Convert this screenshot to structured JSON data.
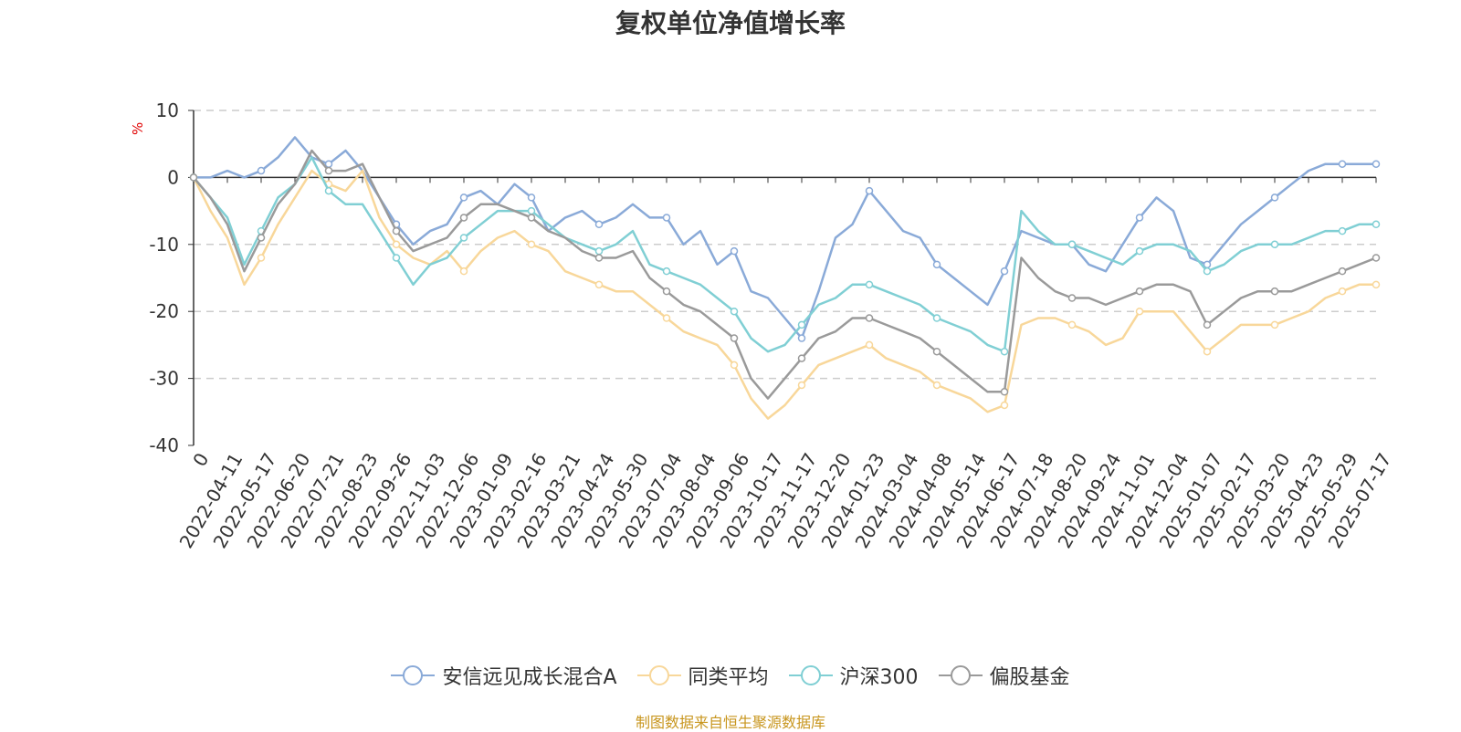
{
  "page_title": "复权单位净值增长率",
  "source_note": "制图数据来自恒生聚源数据库",
  "chart_data": {
    "type": "line",
    "title": "复权单位净值增长率",
    "ylabel": "%",
    "xlabel": "",
    "ylim": [
      -40,
      10
    ],
    "yticks": [
      10,
      0,
      -10,
      -20,
      -30,
      -40
    ],
    "grid": true,
    "legend_position": "bottom",
    "x_tick_labels": [
      "0",
      "2022-04-11",
      "2022-05-17",
      "2022-06-20",
      "2022-07-21",
      "2022-08-23",
      "2022-09-26",
      "2022-11-03",
      "2022-12-06",
      "2023-01-09",
      "2023-02-16",
      "2023-03-21",
      "2023-04-24",
      "2023-05-30",
      "2023-07-04",
      "2023-08-04",
      "2023-09-06",
      "2023-10-17",
      "2023-11-17",
      "2023-12-20",
      "2024-01-23",
      "2024-03-04",
      "2024-04-08",
      "2024-05-14",
      "2024-06-17",
      "2024-07-18",
      "2024-08-20",
      "2024-09-24",
      "2024-11-01",
      "2024-12-04",
      "2025-01-07",
      "2025-02-17",
      "2025-03-20",
      "2025-04-23",
      "2025-05-29",
      "2025-07-17"
    ],
    "x": [
      0,
      0.5,
      1,
      1.5,
      2,
      2.5,
      3,
      3.5,
      4,
      4.5,
      5,
      5.5,
      6,
      6.5,
      7,
      7.5,
      8,
      8.5,
      9,
      9.5,
      10,
      10.5,
      11,
      11.5,
      12,
      12.5,
      13,
      13.5,
      14,
      14.5,
      15,
      15.5,
      16,
      16.5,
      17,
      17.5,
      18,
      18.5,
      19,
      19.5,
      20,
      20.5,
      21,
      21.5,
      22,
      22.5,
      23,
      23.5,
      24,
      24.5,
      25,
      25.5,
      26,
      26.5,
      27,
      27.5,
      28,
      28.5,
      29,
      29.5,
      30,
      30.5,
      31,
      31.5,
      32,
      32.5,
      33,
      33.5,
      34,
      34.5,
      35
    ],
    "series": [
      {
        "name": "安信远见成长混合A",
        "color": "#8aaad8",
        "values": [
          0,
          0,
          1,
          0,
          1,
          3,
          6,
          3,
          2,
          4,
          1,
          -3,
          -7,
          -10,
          -8,
          -7,
          -3,
          -2,
          -4,
          -1,
          -3,
          -8,
          -6,
          -5,
          -7,
          -6,
          -4,
          -6,
          -6,
          -10,
          -8,
          -13,
          -11,
          -17,
          -18,
          -21,
          -24,
          -17,
          -9,
          -7,
          -2,
          -5,
          -8,
          -9,
          -13,
          -15,
          -17,
          -19,
          -14,
          -8,
          -9,
          -10,
          -10,
          -13,
          -14,
          -10,
          -6,
          -3,
          -5,
          -12,
          -13,
          -10,
          -7,
          -5,
          -3,
          -1,
          1,
          2,
          2,
          2,
          2
        ]
      },
      {
        "name": "同类平均",
        "color": "#f8d79a",
        "values": [
          0,
          -5,
          -9,
          -16,
          -12,
          -7,
          -3,
          1,
          -1,
          -2,
          1,
          -6,
          -10,
          -12,
          -13,
          -11,
          -14,
          -11,
          -9,
          -8,
          -10,
          -11,
          -14,
          -15,
          -16,
          -17,
          -17,
          -19,
          -21,
          -23,
          -24,
          -25,
          -28,
          -33,
          -36,
          -34,
          -31,
          -28,
          -27,
          -26,
          -25,
          -27,
          -28,
          -29,
          -31,
          -32,
          -33,
          -35,
          -34,
          -22,
          -21,
          -21,
          -22,
          -23,
          -25,
          -24,
          -20,
          -20,
          -20,
          -23,
          -26,
          -24,
          -22,
          -22,
          -22,
          -21,
          -20,
          -18,
          -17,
          -16,
          -16
        ]
      },
      {
        "name": "沪深300",
        "color": "#80cfd4",
        "values": [
          0,
          -3,
          -6,
          -13,
          -8,
          -3,
          -1,
          3,
          -2,
          -4,
          -4,
          -8,
          -12,
          -16,
          -13,
          -12,
          -9,
          -7,
          -5,
          -5,
          -5,
          -7,
          -9,
          -10,
          -11,
          -10,
          -8,
          -13,
          -14,
          -15,
          -16,
          -18,
          -20,
          -24,
          -26,
          -25,
          -22,
          -19,
          -18,
          -16,
          -16,
          -17,
          -18,
          -19,
          -21,
          -22,
          -23,
          -25,
          -26,
          -5,
          -8,
          -10,
          -10,
          -11,
          -12,
          -13,
          -11,
          -10,
          -10,
          -11,
          -14,
          -13,
          -11,
          -10,
          -10,
          -10,
          -9,
          -8,
          -8,
          -7,
          -7
        ]
      },
      {
        "name": "偏股基金",
        "color": "#9a9a9a",
        "values": [
          0,
          -3,
          -7,
          -14,
          -9,
          -4,
          -1,
          4,
          1,
          1,
          2,
          -3,
          -8,
          -11,
          -10,
          -9,
          -6,
          -4,
          -4,
          -5,
          -6,
          -8,
          -9,
          -11,
          -12,
          -12,
          -11,
          -15,
          -17,
          -19,
          -20,
          -22,
          -24,
          -30,
          -33,
          -30,
          -27,
          -24,
          -23,
          -21,
          -21,
          -22,
          -23,
          -24,
          -26,
          -28,
          -30,
          -32,
          -32,
          -12,
          -15,
          -17,
          -18,
          -18,
          -19,
          -18,
          -17,
          -16,
          -16,
          -17,
          -22,
          -20,
          -18,
          -17,
          -17,
          -17,
          -16,
          -15,
          -14,
          -13,
          -12
        ]
      }
    ]
  }
}
